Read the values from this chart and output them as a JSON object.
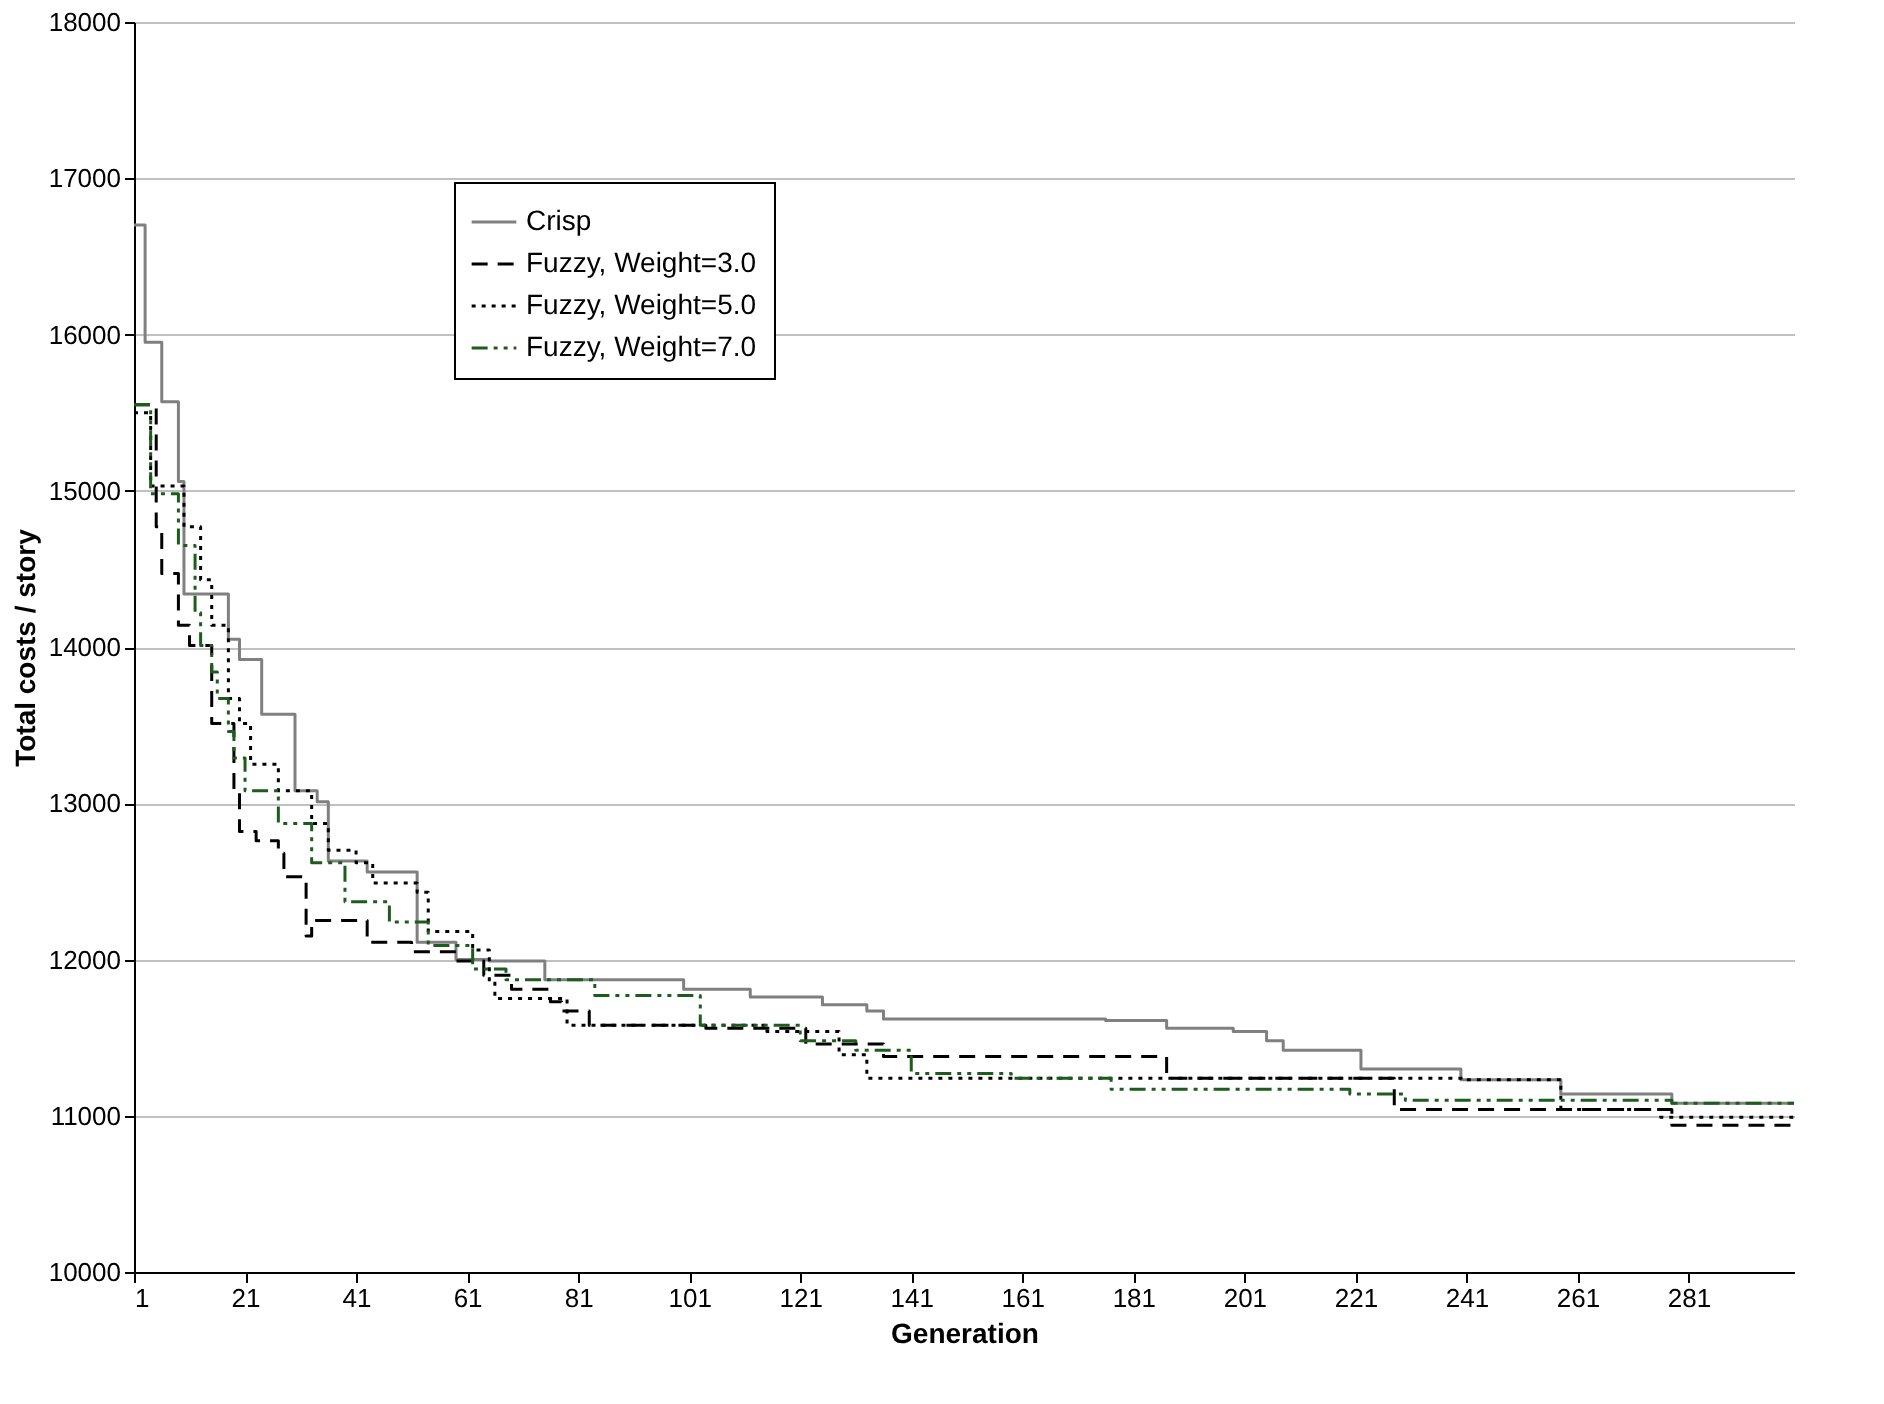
{
  "chart_data": {
    "type": "step",
    "xlabel": "Generation",
    "ylabel": "Total costs / story",
    "xlim": [
      1,
      300
    ],
    "xticks": [
      1,
      21,
      41,
      61,
      81,
      101,
      121,
      141,
      161,
      181,
      201,
      221,
      241,
      261,
      281
    ],
    "ylim": [
      10000,
      18000
    ],
    "yticks": [
      10000,
      11000,
      12000,
      13000,
      14000,
      15000,
      16000,
      17000,
      18000
    ],
    "grid": "y",
    "legend": "top left",
    "series": [
      {
        "name": "Crisp",
        "color": "#808080",
        "line_style": "solid",
        "x": [
          1,
          3,
          6,
          9,
          10,
          18,
          20,
          24,
          30,
          34,
          36,
          43,
          52,
          59,
          65,
          75,
          100,
          112,
          125,
          133,
          136,
          176,
          187,
          199,
          205,
          208,
          222,
          240,
          258,
          278,
          300
        ],
        "values": [
          16700,
          15950,
          15570,
          15060,
          14340,
          14050,
          13920,
          13570,
          13080,
          13010,
          12630,
          12560,
          12110,
          12000,
          11990,
          11870,
          11810,
          11760,
          11710,
          11670,
          11620,
          11610,
          11560,
          11540,
          11480,
          11420,
          11300,
          11230,
          11140,
          11080,
          11080
        ]
      },
      {
        "name": "Fuzzy, Weight=3.0",
        "color": "#000000",
        "line_style": "dashed",
        "x": [
          1,
          5,
          6,
          9,
          11,
          15,
          19,
          20,
          23,
          27,
          28,
          32,
          33,
          38,
          43,
          51,
          59,
          64,
          69,
          76,
          78,
          83,
          104,
          122,
          136,
          187,
          228,
          278,
          300
        ],
        "values": [
          15550,
          14770,
          14470,
          14140,
          14010,
          13510,
          13080,
          12820,
          12760,
          12680,
          12530,
          12150,
          12250,
          12250,
          12110,
          12050,
          11990,
          11900,
          11810,
          11730,
          11670,
          11580,
          11560,
          11460,
          11380,
          11240,
          11040,
          10940,
          10940
        ]
      },
      {
        "name": "Fuzzy, Weight=5.0",
        "color": "#000000",
        "line_style": "dotted",
        "x": [
          1,
          4,
          10,
          13,
          15,
          18,
          20,
          22,
          27,
          33,
          36,
          41,
          44,
          52,
          54,
          62,
          65,
          66,
          79,
          115,
          128,
          133,
          241,
          258,
          276,
          300
        ],
        "values": [
          15500,
          15030,
          14770,
          14430,
          14140,
          13670,
          13510,
          13250,
          13080,
          12870,
          12700,
          12620,
          12490,
          12430,
          12180,
          12060,
          11860,
          11750,
          11580,
          11540,
          11390,
          11240,
          11230,
          11040,
          10990,
          10990
        ]
      },
      {
        "name": "Fuzzy, Weight=7.0",
        "color": "#1e5c1e",
        "line_style": "dashdot",
        "x": [
          1,
          4,
          9,
          12,
          13,
          15,
          16,
          18,
          19,
          21,
          27,
          33,
          39,
          47,
          54,
          62,
          68,
          84,
          103,
          121,
          131,
          141,
          159,
          177,
          220,
          230,
          278,
          300
        ],
        "values": [
          15550,
          14980,
          14650,
          14220,
          14010,
          13840,
          13670,
          13460,
          13290,
          13080,
          12870,
          12620,
          12370,
          12240,
          12090,
          11940,
          11870,
          11770,
          11580,
          11480,
          11420,
          11270,
          11240,
          11170,
          11140,
          11100,
          11080,
          11080
        ]
      }
    ]
  }
}
